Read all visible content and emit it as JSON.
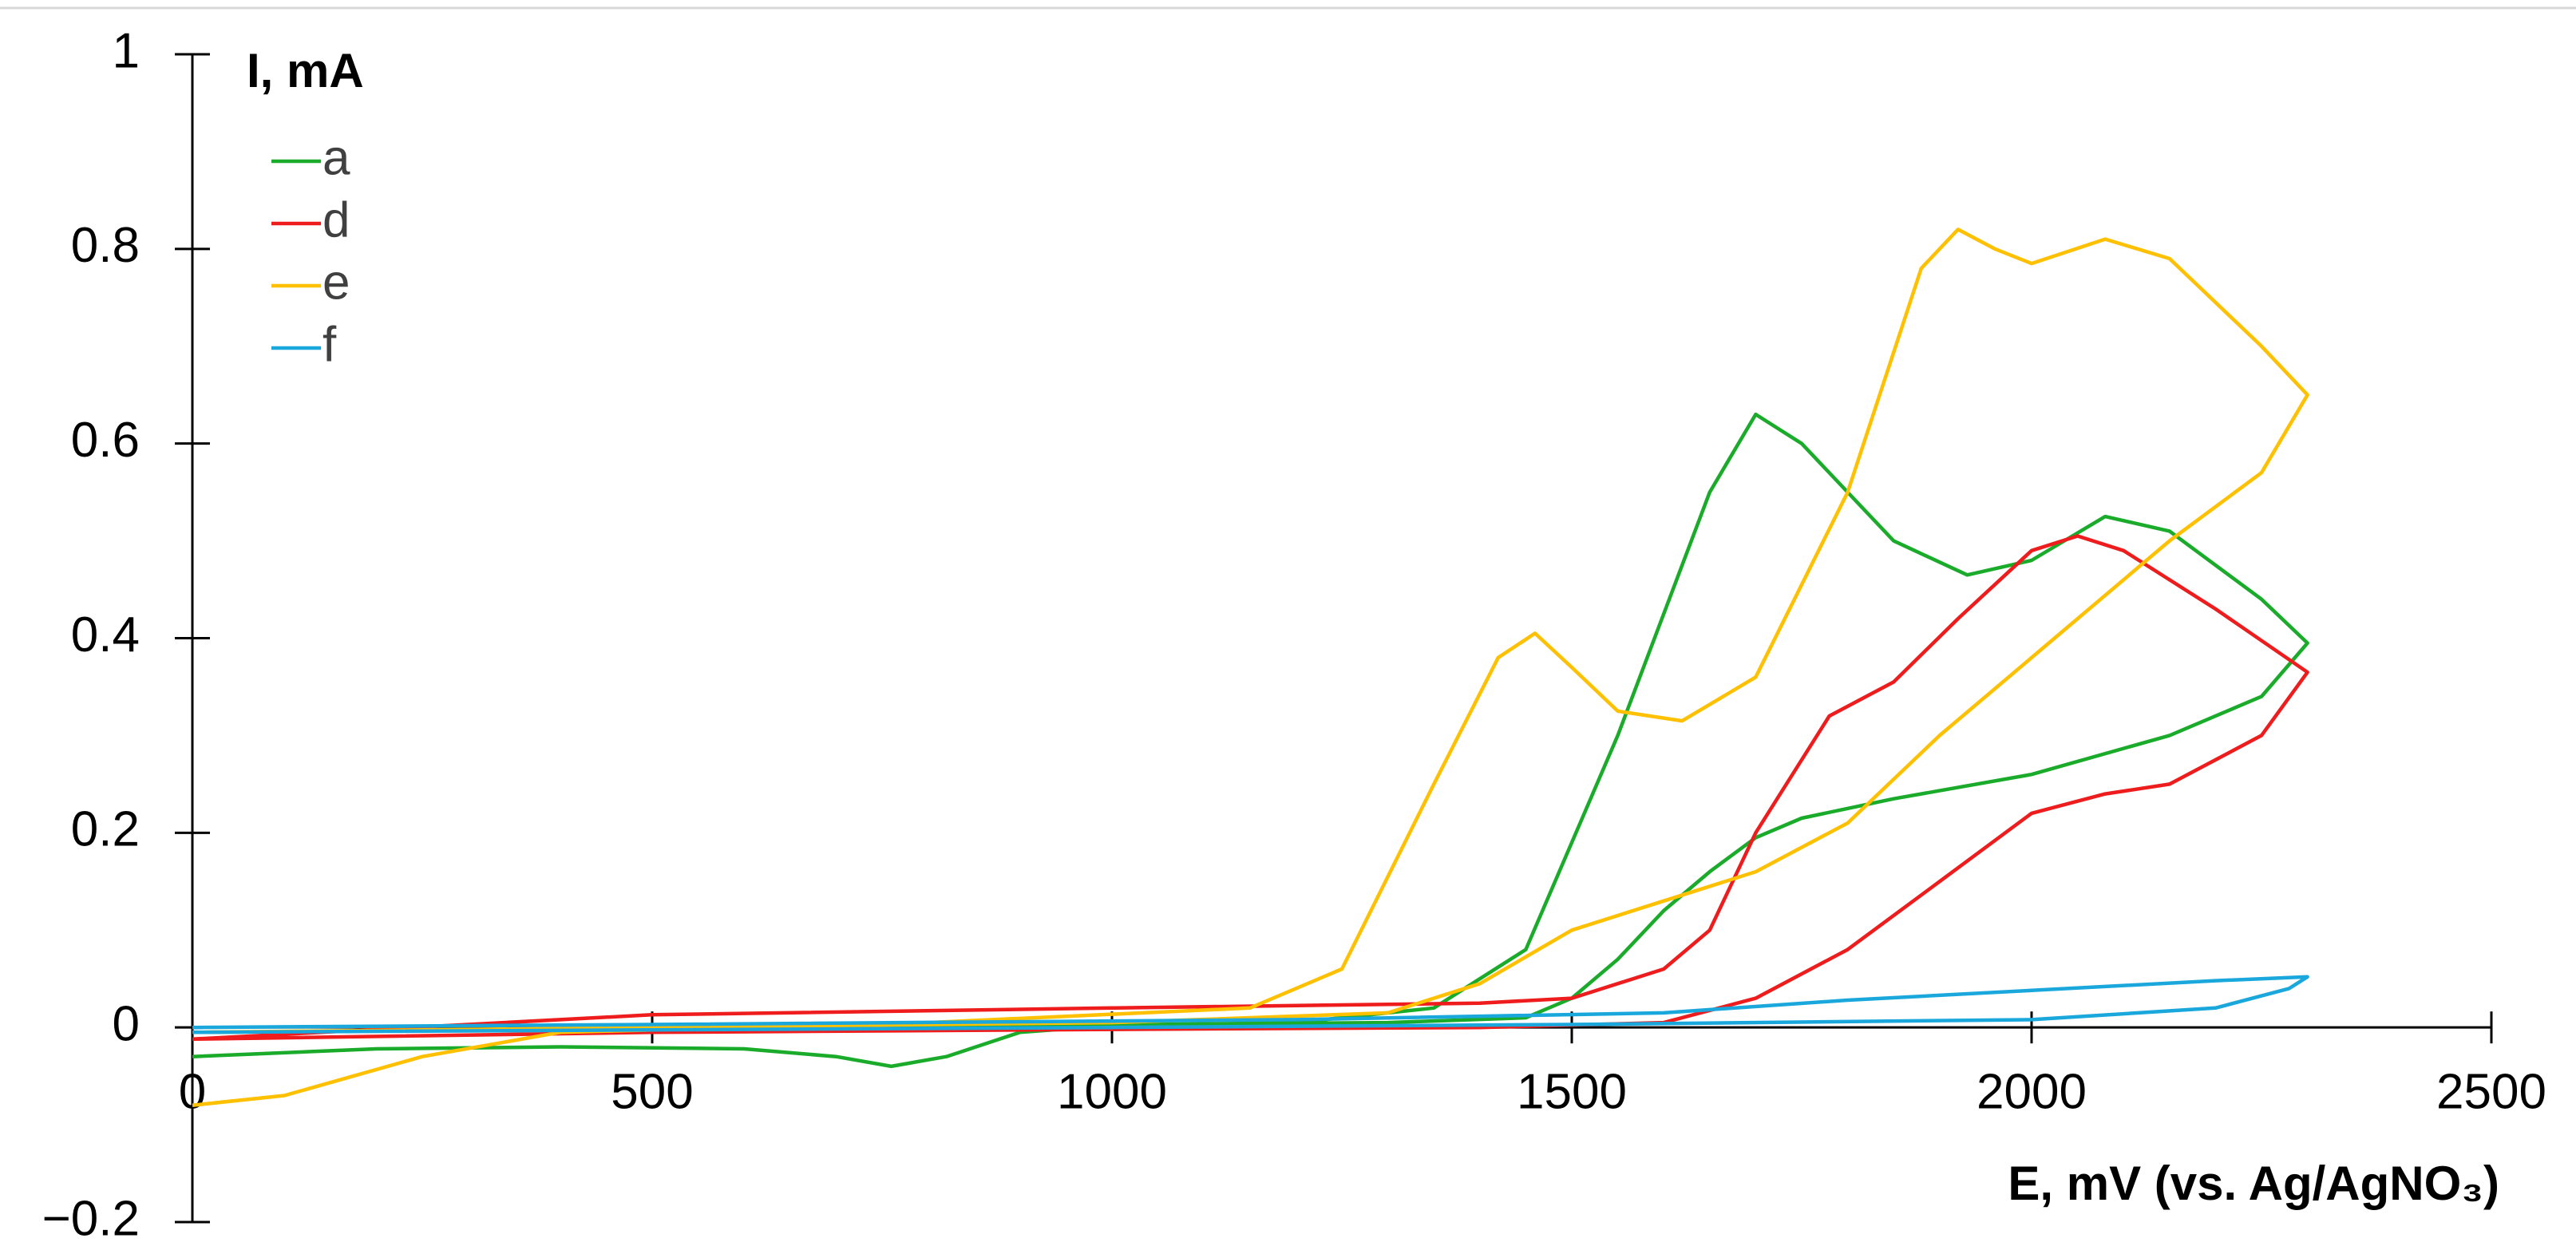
{
  "chart_data": {
    "type": "line",
    "y_label": "I, mA",
    "x_label": "E, mV (vs. Ag/AgNO₃)",
    "xlim": [
      0,
      2500
    ],
    "ylim": [
      -0.2,
      1
    ],
    "xticks": [
      0,
      500,
      1000,
      1500,
      2000,
      2500
    ],
    "yticks": [
      {
        "value": -0.2,
        "label": "−0.2"
      },
      0,
      0.2,
      0.4,
      0.6,
      0.8,
      1
    ],
    "legend": "upper left",
    "series": [
      {
        "name": "a",
        "color": "#1aab2b",
        "x": [
          0,
          200,
          400,
          600,
          700,
          760,
          820,
          900,
          1000,
          1200,
          1350,
          1450,
          1550,
          1650,
          1700,
          1750,
          1850,
          1930,
          2000,
          2080,
          2150,
          2250,
          2300,
          2250,
          2150,
          2000,
          1850,
          1750,
          1700,
          1650,
          1600,
          1550,
          1500,
          1450,
          1300,
          1000,
          600,
          300,
          0
        ],
        "values": [
          -0.03,
          -0.022,
          -0.02,
          -0.022,
          -0.03,
          -0.04,
          -0.03,
          -0.005,
          0.002,
          0.005,
          0.02,
          0.08,
          0.3,
          0.55,
          0.63,
          0.6,
          0.5,
          0.465,
          0.48,
          0.525,
          0.51,
          0.44,
          0.395,
          0.34,
          0.3,
          0.26,
          0.235,
          0.215,
          0.195,
          0.16,
          0.12,
          0.07,
          0.03,
          0.01,
          0.005,
          0.003,
          0.0,
          -0.003,
          -0.005
        ]
      },
      {
        "name": "d",
        "color": "#ee1c1c",
        "x": [
          0,
          500,
          1000,
          1400,
          1500,
          1600,
          1650,
          1700,
          1780,
          1850,
          1920,
          2000,
          2050,
          2100,
          2200,
          2300,
          2250,
          2150,
          2080,
          2000,
          1900,
          1800,
          1700,
          1600,
          1400,
          1000,
          500,
          0
        ],
        "values": [
          -0.012,
          0.013,
          0.02,
          0.025,
          0.03,
          0.06,
          0.1,
          0.2,
          0.32,
          0.355,
          0.42,
          0.49,
          0.505,
          0.49,
          0.43,
          0.365,
          0.3,
          0.25,
          0.24,
          0.22,
          0.15,
          0.08,
          0.03,
          0.005,
          0.0,
          -0.002,
          -0.005,
          -0.012
        ]
      },
      {
        "name": "e",
        "color": "#ffc000",
        "x": [
          0,
          100,
          250,
          400,
          800,
          1150,
          1250,
          1350,
          1420,
          1460,
          1500,
          1550,
          1620,
          1700,
          1800,
          1880,
          1920,
          1960,
          2000,
          2080,
          2150,
          2250,
          2300,
          2250,
          2150,
          2000,
          1900,
          1800,
          1700,
          1600,
          1500,
          1400,
          1300,
          1000,
          500,
          0
        ],
        "values": [
          -0.08,
          -0.07,
          -0.03,
          -0.005,
          0.005,
          0.02,
          0.06,
          0.25,
          0.38,
          0.405,
          0.37,
          0.325,
          0.315,
          0.36,
          0.55,
          0.78,
          0.82,
          0.8,
          0.785,
          0.81,
          0.79,
          0.7,
          0.65,
          0.57,
          0.5,
          0.38,
          0.3,
          0.21,
          0.16,
          0.13,
          0.1,
          0.045,
          0.015,
          0.005,
          0.0,
          -0.005
        ]
      },
      {
        "name": "f",
        "color": "#1aa8dc",
        "x": [
          0,
          1000,
          1500,
          2000,
          2200,
          2280,
          2300,
          2200,
          2000,
          1800,
          1600,
          1200,
          500,
          0
        ],
        "values": [
          -0.005,
          0.0,
          0.003,
          0.008,
          0.02,
          0.04,
          0.052,
          0.048,
          0.038,
          0.028,
          0.015,
          0.008,
          0.003,
          0.0
        ]
      }
    ]
  }
}
